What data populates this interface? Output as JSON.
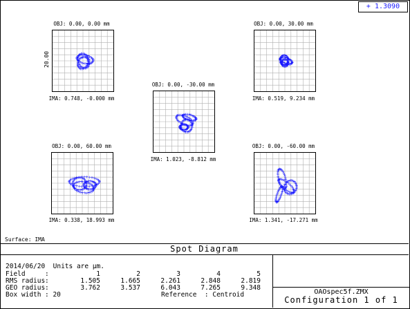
{
  "legend": {
    "marker": "+",
    "value": "1.3090"
  },
  "spots": [
    {
      "obj": "OBJ: 0.00, 0.00 mm",
      "ima": "IMA: 0.748, -0.000 mm"
    },
    {
      "obj": "OBJ: 0.00, 30.00 mm",
      "ima": "IMA: 0.519, 9.234 mm"
    },
    {
      "obj": "OBJ: 0.00, -30.00 mm",
      "ima": "IMA: 1.023, -8.812 mm"
    },
    {
      "obj": "OBJ: 0.00, 60.00 mm",
      "ima": "IMA: 0.338, 18.993 mm"
    },
    {
      "obj": "OBJ: 0.00, -60.00 mm",
      "ima": "IMA: 1.341, -17.271 mm"
    }
  ],
  "scale_label": "20.00",
  "surface": "Surface: IMA",
  "title": "Spot Diagram",
  "info": {
    "date_units": "2014/06/20  Units are µm.",
    "field_label": "Field",
    "rms_label": "RMS radius",
    "geo_label": "GEO radius",
    "box_label": "Box width",
    "box_value": ": 20",
    "reference": "Reference  : Centroid",
    "fields": [
      "1",
      "2",
      "3",
      "4",
      "5"
    ],
    "rms": [
      "1.505",
      "1.665",
      "2.261",
      "2.848",
      "2.819"
    ],
    "geo": [
      "3.762",
      "3.537",
      "6.043",
      "7.265",
      "9.348"
    ],
    "colon": ":"
  },
  "file": "OAOspec5f.ZMX",
  "config": "Configuration 1 of 1",
  "colors": {
    "spot": "#1a1aff",
    "grid": "#b0b0b0"
  }
}
